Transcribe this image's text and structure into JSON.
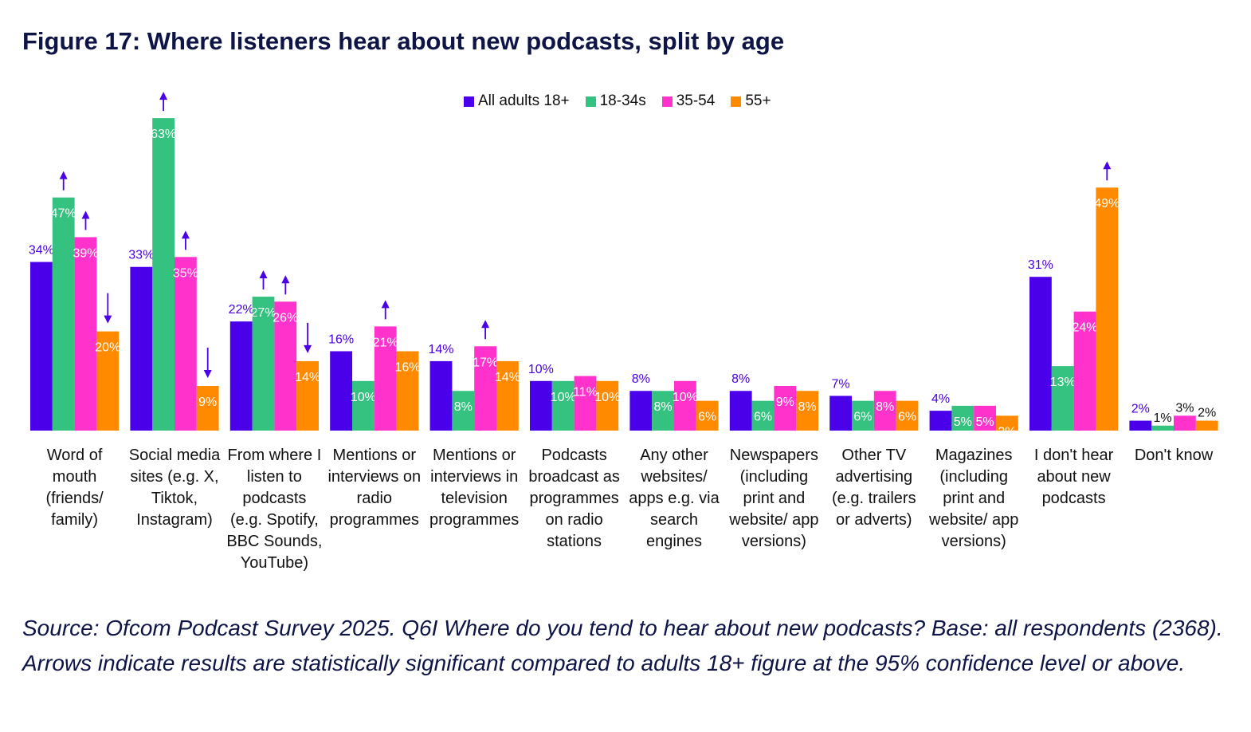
{
  "title": "Figure 17: Where listeners hear about new podcasts, split by age",
  "source": "Source: Ofcom Podcast Survey 2025. Q6I Where do you tend to hear about new podcasts? Base: all respondents (2368). Arrows indicate results are statistically significant compared to adults 18+ figure at the 95% confidence level or above.",
  "chart_data": {
    "type": "bar",
    "title": "Figure 17: Where listeners hear about new podcasts, split by age",
    "legend_position": "top",
    "grid": false,
    "ylim": [
      0,
      65
    ],
    "categories": [
      "Word of mouth (friends/ family)",
      "Social media sites (e.g. X, Tiktok, Instagram)",
      "From where I listen to podcasts (e.g. Spotify, BBC Sounds, YouTube)",
      "Mentions or interviews on radio programmes",
      "Mentions or interviews in television programmes",
      "Podcasts broadcast as programmes on radio stations",
      "Any other websites/ apps e.g. via search engines",
      "Newspapers (including print and website/ app versions)",
      "Other TV advertising (e.g. trailers or adverts)",
      "Magazines (including print and website/ app versions)",
      "I don't hear about new podcasts",
      "Don't know"
    ],
    "series": [
      {
        "name": "All adults 18+",
        "color": "#4a00e8",
        "values": [
          34,
          33,
          22,
          16,
          14,
          10,
          8,
          8,
          7,
          4,
          31,
          2
        ],
        "significance": [
          "",
          "",
          "",
          "",
          "",
          "",
          "",
          "",
          "",
          "",
          "",
          ""
        ]
      },
      {
        "name": "18-34s",
        "color": "#35c17f",
        "values": [
          47,
          63,
          27,
          10,
          8,
          10,
          8,
          6,
          6,
          5,
          13,
          1
        ],
        "significance": [
          "up",
          "up",
          "up",
          "",
          "",
          "",
          "",
          "",
          "",
          "",
          "",
          ""
        ]
      },
      {
        "name": "35-54",
        "color": "#ff33cc",
        "values": [
          39,
          35,
          26,
          21,
          17,
          11,
          10,
          9,
          8,
          5,
          24,
          3
        ],
        "significance": [
          "up",
          "up",
          "up",
          "up",
          "up",
          "",
          "",
          "",
          "",
          "",
          "",
          ""
        ]
      },
      {
        "name": "55+",
        "color": "#ff8a00",
        "values": [
          20,
          9,
          14,
          16,
          14,
          10,
          6,
          8,
          6,
          3,
          49,
          2
        ],
        "significance": [
          "down",
          "down",
          "down",
          "",
          "",
          "",
          "",
          "",
          "",
          "",
          "up",
          ""
        ]
      }
    ],
    "arrow_color": "#4a00e8"
  }
}
